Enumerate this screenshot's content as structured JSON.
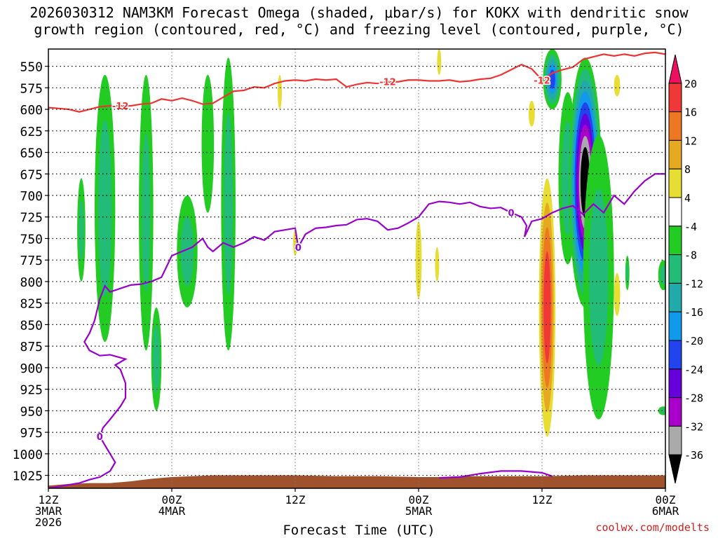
{
  "title_line1": "2026030312 NAM3KM Forecast Omega (shaded, μbar/s) for KOKX with dendritic snow",
  "title_line2": "growth region (contoured, red, °C) and freezing level (contoured, purple, °C)",
  "credit": "coolwx.com/modelts",
  "chart_data": {
    "type": "heatmap",
    "xlabel": "Forecast Time (UTC)",
    "ylabel": "",
    "x_range_hours": [
      0,
      60
    ],
    "y_range_mb": [
      530,
      1040
    ],
    "y_reversed": true,
    "grid": true,
    "x_ticks": [
      {
        "hour": 0,
        "l1": "12Z",
        "l2": "3MAR",
        "l3": "2026"
      },
      {
        "hour": 12,
        "l1": "00Z",
        "l2": "4MAR",
        "l3": ""
      },
      {
        "hour": 24,
        "l1": "12Z",
        "l2": "",
        "l3": ""
      },
      {
        "hour": 36,
        "l1": "00Z",
        "l2": "5MAR",
        "l3": ""
      },
      {
        "hour": 48,
        "l1": "12Z",
        "l2": "",
        "l3": ""
      },
      {
        "hour": 60,
        "l1": "00Z",
        "l2": "6MAR",
        "l3": ""
      }
    ],
    "y_ticks": [
      "550",
      "575",
      "600",
      "625",
      "650",
      "675",
      "700",
      "725",
      "750",
      "775",
      "800",
      "825",
      "850",
      "875",
      "900",
      "925",
      "950",
      "975",
      "1000",
      "1025"
    ],
    "colorbar": {
      "labels": [
        "20",
        "16",
        "12",
        "8",
        "4",
        "-4",
        "-8",
        "-12",
        "-16",
        "-20",
        "-24",
        "-28",
        "-32",
        "-36"
      ],
      "colors": [
        "#ee1060",
        "#f03838",
        "#ee7722",
        "#e6aa22",
        "#e8dd33",
        "#ffffff",
        "#22cc22",
        "#22bb77",
        "#22aaaa",
        "#1199ee",
        "#2244ee",
        "#6600dd",
        "#aa00cc",
        "#aaaaaa",
        "#000000"
      ],
      "bounds": [
        20,
        16,
        12,
        8,
        4,
        -4,
        -8,
        -12,
        -16,
        -20,
        -24,
        -28,
        -32,
        -36
      ]
    },
    "contours": [
      {
        "label": "-12",
        "color": "#ee3333",
        "points": [
          [
            0,
            598
          ],
          [
            1,
            599
          ],
          [
            2,
            600
          ],
          [
            3,
            603
          ],
          [
            4,
            600
          ],
          [
            5,
            597
          ],
          [
            6,
            596
          ],
          [
            7,
            596
          ],
          [
            8,
            596
          ],
          [
            9,
            594
          ],
          [
            10,
            593
          ],
          [
            11,
            588
          ],
          [
            12,
            590
          ],
          [
            13,
            587
          ],
          [
            14,
            590
          ],
          [
            15,
            594
          ],
          [
            16,
            593
          ],
          [
            17,
            586
          ],
          [
            18,
            579
          ],
          [
            19,
            578
          ],
          [
            20,
            574
          ],
          [
            21,
            575
          ],
          [
            22,
            570
          ],
          [
            23,
            567
          ],
          [
            24,
            566
          ],
          [
            25,
            567
          ],
          [
            26,
            565
          ],
          [
            27,
            566
          ],
          [
            28,
            565
          ],
          [
            29,
            574
          ],
          [
            30,
            571
          ],
          [
            31,
            569
          ],
          [
            32,
            570
          ],
          [
            33,
            568
          ],
          [
            34,
            568
          ],
          [
            35,
            566
          ],
          [
            36,
            566
          ],
          [
            37,
            567
          ],
          [
            38,
            567
          ],
          [
            39,
            566
          ],
          [
            40,
            568
          ],
          [
            41,
            567
          ],
          [
            42,
            565
          ],
          [
            43,
            564
          ],
          [
            44,
            560
          ],
          [
            45,
            554
          ],
          [
            46,
            548
          ],
          [
            47,
            553
          ],
          [
            48,
            566
          ],
          [
            49,
            558
          ],
          [
            50,
            554
          ],
          [
            51,
            551
          ],
          [
            52,
            542
          ],
          [
            53,
            539
          ],
          [
            54,
            536
          ],
          [
            55,
            538
          ],
          [
            56,
            536
          ],
          [
            57,
            538
          ],
          [
            58,
            535
          ],
          [
            59,
            534
          ],
          [
            60,
            536
          ]
        ]
      },
      {
        "label": "0",
        "color": "#9900cc",
        "points": [
          [
            0,
            1040
          ],
          [
            1,
            1038
          ],
          [
            2,
            1036
          ],
          [
            3,
            1034
          ],
          [
            4,
            1030
          ],
          [
            5,
            1027
          ],
          [
            6,
            1020
          ],
          [
            6.5,
            1010
          ],
          [
            6,
            1000
          ],
          [
            5.5,
            990
          ],
          [
            5,
            980
          ],
          [
            5.3,
            970
          ],
          [
            6,
            960
          ],
          [
            7,
            945
          ],
          [
            7.5,
            935
          ],
          [
            7.5,
            918
          ],
          [
            7,
            902
          ],
          [
            6.5,
            897
          ],
          [
            7.5,
            890
          ],
          [
            6,
            885
          ],
          [
            5,
            886
          ],
          [
            4,
            880
          ],
          [
            3.5,
            870
          ],
          [
            4,
            860
          ],
          [
            4.5,
            845
          ],
          [
            5,
            820
          ],
          [
            5.5,
            805
          ],
          [
            6,
            812
          ],
          [
            7,
            808
          ],
          [
            8,
            804
          ],
          [
            9,
            803
          ],
          [
            10,
            800
          ],
          [
            11,
            795
          ],
          [
            12,
            770
          ],
          [
            13,
            765
          ],
          [
            14,
            760
          ],
          [
            15,
            750
          ],
          [
            15.5,
            760
          ],
          [
            16,
            765
          ],
          [
            17,
            755
          ],
          [
            18,
            760
          ],
          [
            19,
            755
          ],
          [
            20,
            748
          ],
          [
            21,
            752
          ],
          [
            22,
            742
          ],
          [
            23,
            740
          ],
          [
            24,
            738
          ],
          [
            24.3,
            760
          ],
          [
            25,
            745
          ],
          [
            26,
            738
          ],
          [
            27,
            737
          ],
          [
            28,
            735
          ],
          [
            29,
            734
          ],
          [
            30,
            728
          ],
          [
            31,
            727
          ],
          [
            32,
            730
          ],
          [
            33,
            740
          ],
          [
            34,
            738
          ],
          [
            35,
            732
          ],
          [
            36,
            725
          ],
          [
            37,
            710
          ],
          [
            38,
            707
          ],
          [
            39,
            708
          ],
          [
            40,
            710
          ],
          [
            41,
            708
          ],
          [
            42,
            713
          ],
          [
            43,
            715
          ],
          [
            44,
            714
          ],
          [
            45,
            720
          ],
          [
            46,
            725
          ],
          [
            46.5,
            735
          ],
          [
            46.3,
            748
          ],
          [
            47,
            730
          ],
          [
            48,
            727
          ],
          [
            49,
            720
          ],
          [
            50,
            715
          ],
          [
            51,
            712
          ],
          [
            52,
            722
          ],
          [
            53,
            710
          ],
          [
            54,
            720
          ],
          [
            55,
            700
          ],
          [
            56,
            710
          ],
          [
            57,
            695
          ],
          [
            58,
            683
          ],
          [
            59,
            675
          ],
          [
            60,
            675
          ]
        ]
      },
      {
        "label": "",
        "color": "#9900cc",
        "points": [
          [
            38,
            1028
          ],
          [
            40,
            1027
          ],
          [
            42,
            1023
          ],
          [
            44,
            1020
          ],
          [
            46,
            1020
          ],
          [
            48,
            1022
          ],
          [
            49,
            1026
          ]
        ]
      }
    ],
    "omega_features": [
      {
        "cx": 5.5,
        "top": 560,
        "bottom": 870,
        "halfwidth": 1.0,
        "peak": -10
      },
      {
        "cx": 9.5,
        "top": 560,
        "bottom": 880,
        "halfwidth": 0.7,
        "peak": -8
      },
      {
        "cx": 3.2,
        "top": 680,
        "bottom": 800,
        "halfwidth": 0.4,
        "peak": -8
      },
      {
        "cx": 10.5,
        "top": 830,
        "bottom": 950,
        "halfwidth": 0.5,
        "peak": -10
      },
      {
        "cx": 13.5,
        "top": 700,
        "bottom": 830,
        "halfwidth": 1.0,
        "peak": -9
      },
      {
        "cx": 15.5,
        "top": 560,
        "bottom": 720,
        "halfwidth": 0.6,
        "peak": -7
      },
      {
        "cx": 17.5,
        "top": 540,
        "bottom": 880,
        "halfwidth": 0.7,
        "peak": -9
      },
      {
        "cx": 22.5,
        "top": 560,
        "bottom": 600,
        "halfwidth": 0.2,
        "peak": 5
      },
      {
        "cx": 24.0,
        "top": 740,
        "bottom": 770,
        "halfwidth": 0.2,
        "peak": 5
      },
      {
        "cx": 36.0,
        "top": 730,
        "bottom": 820,
        "halfwidth": 0.3,
        "peak": 6
      },
      {
        "cx": 37.8,
        "top": 760,
        "bottom": 800,
        "halfwidth": 0.2,
        "peak": 5
      },
      {
        "cx": 38.0,
        "top": 530,
        "bottom": 560,
        "halfwidth": 0.2,
        "peak": 6
      },
      {
        "cx": 47.0,
        "top": 590,
        "bottom": 620,
        "halfwidth": 0.3,
        "peak": 5
      },
      {
        "cx": 48.5,
        "top": 680,
        "bottom": 980,
        "halfwidth": 0.8,
        "peak": 18
      },
      {
        "cx": 49.0,
        "top": 530,
        "bottom": 600,
        "halfwidth": 0.9,
        "peak": -20
      },
      {
        "cx": 50.5,
        "top": 580,
        "bottom": 780,
        "halfwidth": 0.9,
        "peak": -10
      },
      {
        "cx": 52.2,
        "top": 540,
        "bottom": 830,
        "halfwidth": 1.6,
        "peak": -38
      },
      {
        "cx": 53.5,
        "top": 630,
        "bottom": 960,
        "halfwidth": 1.5,
        "peak": -9
      },
      {
        "cx": 55.3,
        "top": 560,
        "bottom": 585,
        "halfwidth": 0.3,
        "peak": 6
      },
      {
        "cx": 55.3,
        "top": 790,
        "bottom": 840,
        "halfwidth": 0.3,
        "peak": 6
      },
      {
        "cx": 56.3,
        "top": 770,
        "bottom": 810,
        "halfwidth": 0.2,
        "peak": -8
      },
      {
        "cx": 59.8,
        "top": 775,
        "bottom": 810,
        "halfwidth": 0.5,
        "peak": -9
      },
      {
        "cx": 59.8,
        "top": 945,
        "bottom": 955,
        "halfwidth": 0.5,
        "peak": -9
      }
    ],
    "terrain": {
      "color": "#a0522d",
      "points": [
        [
          0,
          1037
        ],
        [
          2,
          1035
        ],
        [
          4,
          1034
        ],
        [
          6,
          1034
        ],
        [
          8,
          1032
        ],
        [
          10,
          1029
        ],
        [
          12,
          1027
        ],
        [
          14,
          1026
        ],
        [
          16,
          1025
        ],
        [
          20,
          1025
        ],
        [
          24,
          1025
        ],
        [
          28,
          1026
        ],
        [
          32,
          1026
        ],
        [
          36,
          1027
        ],
        [
          38,
          1027
        ],
        [
          40,
          1026
        ],
        [
          44,
          1026
        ],
        [
          48,
          1026
        ],
        [
          52,
          1025
        ],
        [
          56,
          1025
        ],
        [
          60,
          1025
        ]
      ]
    }
  }
}
